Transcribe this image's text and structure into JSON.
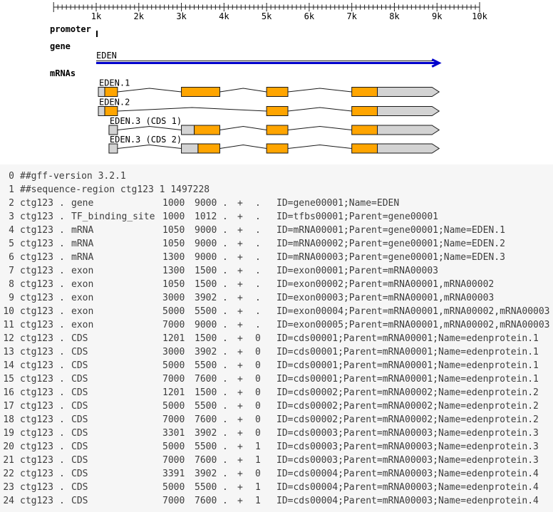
{
  "colors": {
    "cds_fill": "#ffa500",
    "utr_fill": "#d3d3d3",
    "outline": "#1a1a1a",
    "gene_arrow": "#0000cc",
    "ruler_stroke": "#222222",
    "diagram_text": "#000000",
    "panel_bg": "#f6f6f6",
    "panel_text": "#3d3d3d"
  },
  "diagram": {
    "ruler": {
      "start": 0,
      "end": 10000,
      "major_interval": 1000,
      "minor_interval": 100,
      "major_labels": [
        "1k",
        "2k",
        "3k",
        "4k",
        "5k",
        "6k",
        "7k",
        "8k",
        "9k",
        "10k"
      ]
    },
    "promoter": {
      "track_label": "promoter",
      "start": 1000,
      "end": 1012
    },
    "gene": {
      "track_label": "gene",
      "name": "EDEN",
      "start": 1000,
      "end": 9000
    },
    "mrnas": {
      "track_label": "mRNAs",
      "transcripts": [
        {
          "label": "EDEN.1",
          "segments": [
            {
              "kind": "utr",
              "start": 1050,
              "end": 1200
            },
            {
              "kind": "cds",
              "start": 1201,
              "end": 1500
            },
            {
              "kind": "cds",
              "start": 3000,
              "end": 3902
            },
            {
              "kind": "cds",
              "start": 5000,
              "end": 5500
            },
            {
              "kind": "cds",
              "start": 7000,
              "end": 7600
            },
            {
              "kind": "utr_arrow",
              "start": 7600,
              "end": 9000
            }
          ]
        },
        {
          "label": "EDEN.2",
          "segments": [
            {
              "kind": "utr",
              "start": 1050,
              "end": 1200
            },
            {
              "kind": "cds",
              "start": 1201,
              "end": 1500
            },
            {
              "kind": "cds",
              "start": 5000,
              "end": 5500
            },
            {
              "kind": "cds",
              "start": 7000,
              "end": 7600
            },
            {
              "kind": "utr_arrow",
              "start": 7600,
              "end": 9000
            }
          ]
        },
        {
          "label": "EDEN.3 (CDS 1)",
          "segments": [
            {
              "kind": "utr",
              "start": 1300,
              "end": 1500
            },
            {
              "kind": "utr",
              "start": 3000,
              "end": 3300
            },
            {
              "kind": "cds",
              "start": 3301,
              "end": 3902
            },
            {
              "kind": "cds",
              "start": 5000,
              "end": 5500
            },
            {
              "kind": "cds",
              "start": 7000,
              "end": 7600
            },
            {
              "kind": "utr_arrow",
              "start": 7600,
              "end": 9000
            }
          ]
        },
        {
          "label": "EDEN.3 (CDS 2)",
          "segments": [
            {
              "kind": "utr",
              "start": 1300,
              "end": 1500
            },
            {
              "kind": "utr",
              "start": 3000,
              "end": 3390
            },
            {
              "kind": "cds",
              "start": 3391,
              "end": 3902
            },
            {
              "kind": "cds",
              "start": 5000,
              "end": 5500
            },
            {
              "kind": "cds",
              "start": 7000,
              "end": 7600
            },
            {
              "kind": "utr_arrow",
              "start": 7600,
              "end": 9000
            }
          ]
        }
      ]
    }
  },
  "gff": {
    "rows": [
      {
        "n": "0",
        "directive": "##gff-version 3.2.1"
      },
      {
        "n": "1",
        "directive": "##sequence-region ctg123 1 1497228"
      },
      {
        "n": "2",
        "seqid": "ctg123",
        "source": ".",
        "type": "gene",
        "start": "1000",
        "end": "9000",
        "score": ".",
        "strand": "+",
        "phase": ".",
        "attrs": "ID=gene00001;Name=EDEN"
      },
      {
        "n": "3",
        "seqid": "ctg123",
        "source": ".",
        "type": "TF_binding_site",
        "start": "1000",
        "end": "1012",
        "score": ".",
        "strand": "+",
        "phase": ".",
        "attrs": "ID=tfbs00001;Parent=gene00001"
      },
      {
        "n": "4",
        "seqid": "ctg123",
        "source": ".",
        "type": "mRNA",
        "start": "1050",
        "end": "9000",
        "score": ".",
        "strand": "+",
        "phase": ".",
        "attrs": "ID=mRNA00001;Parent=gene00001;Name=EDEN.1"
      },
      {
        "n": "5",
        "seqid": "ctg123",
        "source": ".",
        "type": "mRNA",
        "start": "1050",
        "end": "9000",
        "score": ".",
        "strand": "+",
        "phase": ".",
        "attrs": "ID=mRNA00002;Parent=gene00001;Name=EDEN.2"
      },
      {
        "n": "6",
        "seqid": "ctg123",
        "source": ".",
        "type": "mRNA",
        "start": "1300",
        "end": "9000",
        "score": ".",
        "strand": "+",
        "phase": ".",
        "attrs": "ID=mRNA00003;Parent=gene00001;Name=EDEN.3"
      },
      {
        "n": "7",
        "seqid": "ctg123",
        "source": ".",
        "type": "exon",
        "start": "1300",
        "end": "1500",
        "score": ".",
        "strand": "+",
        "phase": ".",
        "attrs": "ID=exon00001;Parent=mRNA00003"
      },
      {
        "n": "8",
        "seqid": "ctg123",
        "source": ".",
        "type": "exon",
        "start": "1050",
        "end": "1500",
        "score": ".",
        "strand": "+",
        "phase": ".",
        "attrs": "ID=exon00002;Parent=mRNA00001,mRNA00002"
      },
      {
        "n": "9",
        "seqid": "ctg123",
        "source": ".",
        "type": "exon",
        "start": "3000",
        "end": "3902",
        "score": ".",
        "strand": "+",
        "phase": ".",
        "attrs": "ID=exon00003;Parent=mRNA00001,mRNA00003"
      },
      {
        "n": "10",
        "seqid": "ctg123",
        "source": ".",
        "type": "exon",
        "start": "5000",
        "end": "5500",
        "score": ".",
        "strand": "+",
        "phase": ".",
        "attrs": "ID=exon00004;Parent=mRNA00001,mRNA00002,mRNA00003"
      },
      {
        "n": "11",
        "seqid": "ctg123",
        "source": ".",
        "type": "exon",
        "start": "7000",
        "end": "9000",
        "score": ".",
        "strand": "+",
        "phase": ".",
        "attrs": "ID=exon00005;Parent=mRNA00001,mRNA00002,mRNA00003"
      },
      {
        "n": "12",
        "seqid": "ctg123",
        "source": ".",
        "type": "CDS",
        "start": "1201",
        "end": "1500",
        "score": ".",
        "strand": "+",
        "phase": "0",
        "attrs": "ID=cds00001;Parent=mRNA00001;Name=edenprotein.1"
      },
      {
        "n": "13",
        "seqid": "ctg123",
        "source": ".",
        "type": "CDS",
        "start": "3000",
        "end": "3902",
        "score": ".",
        "strand": "+",
        "phase": "0",
        "attrs": "ID=cds00001;Parent=mRNA00001;Name=edenprotein.1"
      },
      {
        "n": "14",
        "seqid": "ctg123",
        "source": ".",
        "type": "CDS",
        "start": "5000",
        "end": "5500",
        "score": ".",
        "strand": "+",
        "phase": "0",
        "attrs": "ID=cds00001;Parent=mRNA00001;Name=edenprotein.1"
      },
      {
        "n": "15",
        "seqid": "ctg123",
        "source": ".",
        "type": "CDS",
        "start": "7000",
        "end": "7600",
        "score": ".",
        "strand": "+",
        "phase": "0",
        "attrs": "ID=cds00001;Parent=mRNA00001;Name=edenprotein.1"
      },
      {
        "n": "16",
        "seqid": "ctg123",
        "source": ".",
        "type": "CDS",
        "start": "1201",
        "end": "1500",
        "score": ".",
        "strand": "+",
        "phase": "0",
        "attrs": "ID=cds00002;Parent=mRNA00002;Name=edenprotein.2"
      },
      {
        "n": "17",
        "seqid": "ctg123",
        "source": ".",
        "type": "CDS",
        "start": "5000",
        "end": "5500",
        "score": ".",
        "strand": "+",
        "phase": "0",
        "attrs": "ID=cds00002;Parent=mRNA00002;Name=edenprotein.2"
      },
      {
        "n": "18",
        "seqid": "ctg123",
        "source": ".",
        "type": "CDS",
        "start": "7000",
        "end": "7600",
        "score": ".",
        "strand": "+",
        "phase": "0",
        "attrs": "ID=cds00002;Parent=mRNA00002;Name=edenprotein.2"
      },
      {
        "n": "19",
        "seqid": "ctg123",
        "source": ".",
        "type": "CDS",
        "start": "3301",
        "end": "3902",
        "score": ".",
        "strand": "+",
        "phase": "0",
        "attrs": "ID=cds00003;Parent=mRNA00003;Name=edenprotein.3"
      },
      {
        "n": "20",
        "seqid": "ctg123",
        "source": ".",
        "type": "CDS",
        "start": "5000",
        "end": "5500",
        "score": ".",
        "strand": "+",
        "phase": "1",
        "attrs": "ID=cds00003;Parent=mRNA00003;Name=edenprotein.3"
      },
      {
        "n": "21",
        "seqid": "ctg123",
        "source": ".",
        "type": "CDS",
        "start": "7000",
        "end": "7600",
        "score": ".",
        "strand": "+",
        "phase": "1",
        "attrs": "ID=cds00003;Parent=mRNA00003;Name=edenprotein.3"
      },
      {
        "n": "22",
        "seqid": "ctg123",
        "source": ".",
        "type": "CDS",
        "start": "3391",
        "end": "3902",
        "score": ".",
        "strand": "+",
        "phase": "0",
        "attrs": "ID=cds00004;Parent=mRNA00003;Name=edenprotein.4"
      },
      {
        "n": "23",
        "seqid": "ctg123",
        "source": ".",
        "type": "CDS",
        "start": "5000",
        "end": "5500",
        "score": ".",
        "strand": "+",
        "phase": "1",
        "attrs": "ID=cds00004;Parent=mRNA00003;Name=edenprotein.4"
      },
      {
        "n": "24",
        "seqid": "ctg123",
        "source": ".",
        "type": "CDS",
        "start": "7000",
        "end": "7600",
        "score": ".",
        "strand": "+",
        "phase": "1",
        "attrs": "ID=cds00004;Parent=mRNA00003;Name=edenprotein.4"
      }
    ]
  }
}
